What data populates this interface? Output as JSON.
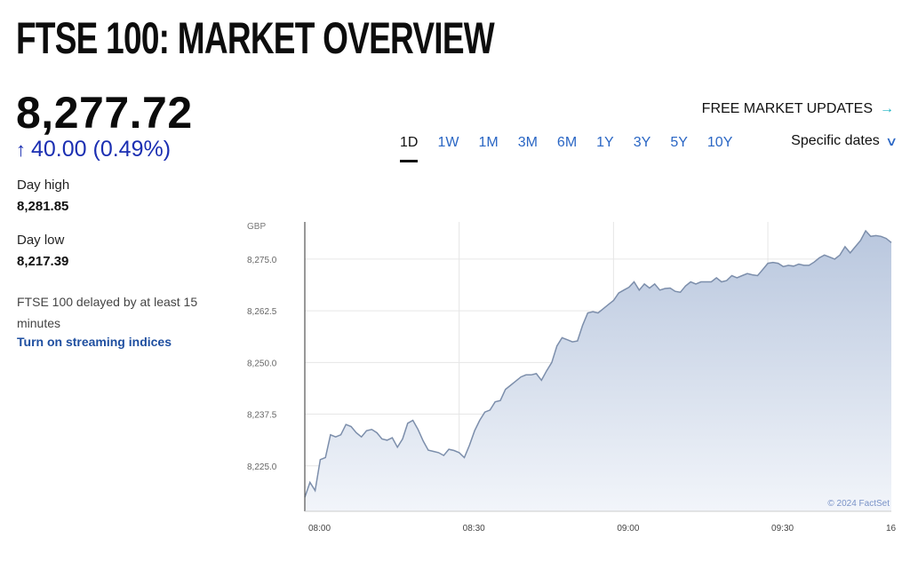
{
  "page": {
    "title": "FTSE 100: MARKET OVERVIEW",
    "price": "8,277.72",
    "change_arrow": "↑",
    "change": "40.00 (0.49%)",
    "day_high_label": "Day high",
    "day_high_value": "8,281.85",
    "day_low_label": "Day low",
    "day_low_value": "8,217.39",
    "delayed_note": "FTSE 100 delayed by at least 15 minutes",
    "streaming_link": "Turn on streaming indices",
    "updates_label": "FREE MARKET UPDATES",
    "updates_icon": "external-link-icon",
    "specific_dates_label": "Specific dates",
    "ranges": [
      "1D",
      "1W",
      "1M",
      "3M",
      "6M",
      "1Y",
      "3Y",
      "5Y",
      "10Y"
    ],
    "active_range": "1D",
    "colors": {
      "link": "#2a66c4",
      "change": "#1b2fb2",
      "line": "#7c8eab",
      "fill_top": "#b9c7de",
      "fill_bottom": "#f2f5fa"
    }
  },
  "chart_data": {
    "type": "area",
    "ylabel": "GBP",
    "credit": "© 2024 FactSet",
    "y_ticks": [
      8225.0,
      8237.5,
      8250.0,
      8262.5,
      8275.0
    ],
    "y_tick_labels": [
      "8,225.0",
      "8,237.5",
      "8,250.0",
      "8,262.5",
      "8,275.0"
    ],
    "x_ticks": [
      0,
      30,
      60,
      90,
      114
    ],
    "x_tick_labels": [
      "08:00",
      "08:30",
      "09:00",
      "09:30",
      "16"
    ],
    "ylim": [
      8214,
      8284
    ],
    "xlim": [
      0,
      114
    ],
    "grid": true,
    "series": [
      {
        "x": [
          0,
          1,
          2,
          3,
          4,
          5,
          6,
          7,
          8,
          9,
          10,
          11,
          12,
          13,
          14,
          15,
          16,
          17,
          18,
          19,
          20,
          21,
          22,
          23,
          24,
          25,
          26,
          27,
          28,
          29,
          30,
          31,
          32,
          33,
          34,
          35,
          36,
          37,
          38,
          39,
          40,
          41,
          42,
          43,
          44,
          45,
          46,
          47,
          48,
          49,
          50,
          51,
          52,
          53,
          54,
          55,
          56,
          57,
          58,
          59,
          60,
          61,
          62,
          63,
          64,
          65,
          66,
          67,
          68,
          69,
          70,
          71,
          72,
          73,
          74,
          75,
          76,
          77,
          78,
          79,
          80,
          81,
          82,
          83,
          84,
          85,
          86,
          87,
          88,
          89,
          90,
          91,
          92,
          93,
          94,
          95,
          96,
          97,
          98,
          99,
          100,
          101,
          102,
          103,
          104,
          105,
          106,
          107,
          108,
          109,
          110,
          111,
          112,
          113,
          114
        ],
        "values": [
          8217.4,
          8221.0,
          8219.0,
          8226.5,
          8227.0,
          8232.5,
          8232.0,
          8232.5,
          8235.0,
          8234.5,
          8233.0,
          8232.0,
          8233.5,
          8233.8,
          8233.0,
          8231.5,
          8231.2,
          8231.8,
          8229.5,
          8231.5,
          8235.3,
          8236.0,
          8233.8,
          8231.0,
          8228.8,
          8228.5,
          8228.2,
          8227.5,
          8229.0,
          8228.7,
          8228.2,
          8227.0,
          8230.0,
          8233.5,
          8236.0,
          8238.0,
          8238.5,
          8240.5,
          8240.8,
          8243.5,
          8244.5,
          8245.5,
          8246.5,
          8247.0,
          8247.0,
          8247.3,
          8245.7,
          8248.0,
          8250.0,
          8254.0,
          8256.0,
          8255.5,
          8255.0,
          8255.2,
          8259.0,
          8262.0,
          8262.3,
          8262.0,
          8263.0,
          8264.0,
          8265.0,
          8266.8,
          8267.5,
          8268.2,
          8269.5,
          8267.5,
          8269.0,
          8268.0,
          8269.0,
          8267.5,
          8267.9,
          8268.0,
          8267.2,
          8267.0,
          8268.5,
          8269.5,
          8269.0,
          8269.5,
          8269.5,
          8269.5,
          8270.5,
          8269.5,
          8269.8,
          8271.0,
          8270.5,
          8271.0,
          8271.5,
          8271.2,
          8271.0,
          8272.5,
          8274.0,
          8274.2,
          8274.0,
          8273.2,
          8273.5,
          8273.3,
          8273.8,
          8273.5,
          8273.5,
          8274.3,
          8275.3,
          8276.0,
          8275.5,
          8275.0,
          8276.0,
          8278.0,
          8276.5,
          8278.0,
          8279.5,
          8281.85,
          8280.5,
          8280.7,
          8280.5,
          8280.0,
          8279.0
        ]
      }
    ]
  }
}
